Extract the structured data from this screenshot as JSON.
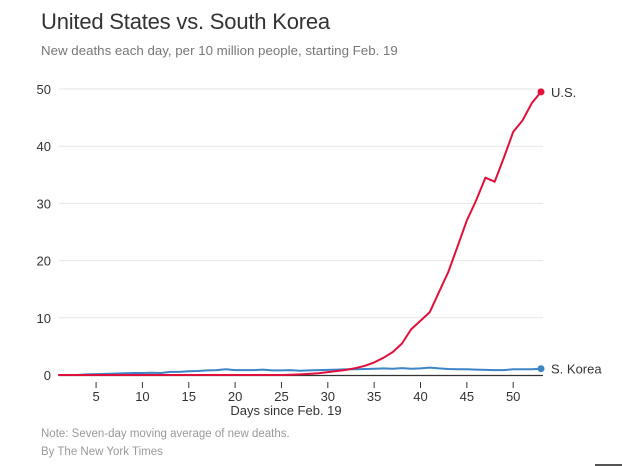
{
  "header": {
    "title": "United States vs. South Korea",
    "subtitle": "New deaths each day, per 10 million people, starting Feb. 19"
  },
  "footer": {
    "note": "Note: Seven-day moving average of new deaths.",
    "credit": "By The New York Times"
  },
  "colors": {
    "us": "#e0103c",
    "korea": "#3d85c6",
    "grid": "#e6e6e6",
    "axis": "#333333"
  },
  "chart_data": {
    "type": "line",
    "title": "United States vs. South Korea",
    "subtitle": "New deaths each day, per 10 million people, starting Feb. 19",
    "xlabel": "Days since Feb. 19",
    "ylabel": "",
    "xlim": [
      1,
      53
    ],
    "ylim": [
      0,
      50
    ],
    "xticks": [
      5,
      10,
      15,
      20,
      25,
      30,
      35,
      40,
      45,
      50
    ],
    "xtick_labels": [
      "5",
      "10",
      "15",
      "20",
      "25",
      "30",
      "35",
      "40",
      "45",
      "50"
    ],
    "yticks": [
      0,
      10,
      20,
      30,
      40,
      50
    ],
    "ytick_labels": [
      "0",
      "10",
      "20",
      "30",
      "40",
      "50"
    ],
    "grid": true,
    "legend": "end-of-line labels",
    "x": [
      1,
      2,
      3,
      4,
      5,
      6,
      7,
      8,
      9,
      10,
      11,
      12,
      13,
      14,
      15,
      16,
      17,
      18,
      19,
      20,
      21,
      22,
      23,
      24,
      25,
      26,
      27,
      28,
      29,
      30,
      31,
      32,
      33,
      34,
      35,
      36,
      37,
      38,
      39,
      40,
      41,
      42,
      43,
      44,
      45,
      46,
      47,
      48,
      49,
      50,
      51,
      52,
      53
    ],
    "series": [
      {
        "name": "U.S.",
        "label": "U.S.",
        "values": [
          0,
          0,
          0,
          0,
          0,
          0,
          0,
          0,
          0,
          0,
          0,
          0,
          0,
          0,
          0,
          0,
          0,
          0,
          0,
          0,
          0,
          0,
          0,
          0,
          0,
          0.05,
          0.1,
          0.2,
          0.3,
          0.5,
          0.7,
          0.9,
          1.2,
          1.6,
          2.2,
          3.0,
          4.0,
          5.5,
          8.0,
          9.5,
          11.0,
          14.5,
          18.0,
          22.5,
          27.0,
          30.5,
          34.5,
          33.8,
          38.0,
          42.5,
          44.5,
          47.5,
          49.5
        ]
      },
      {
        "name": "S. Korea",
        "label": "S. Korea",
        "values": [
          0,
          0,
          0,
          0.1,
          0.15,
          0.2,
          0.25,
          0.3,
          0.35,
          0.35,
          0.4,
          0.35,
          0.55,
          0.55,
          0.65,
          0.7,
          0.8,
          0.85,
          1.0,
          0.85,
          0.85,
          0.85,
          0.95,
          0.8,
          0.8,
          0.85,
          0.75,
          0.8,
          0.85,
          0.9,
          0.95,
          1.0,
          1.0,
          1.05,
          1.1,
          1.15,
          1.1,
          1.2,
          1.1,
          1.15,
          1.3,
          1.15,
          1.05,
          1.0,
          1.0,
          0.95,
          0.9,
          0.85,
          0.85,
          1.0,
          1.0,
          1.0,
          1.1
        ]
      }
    ]
  }
}
